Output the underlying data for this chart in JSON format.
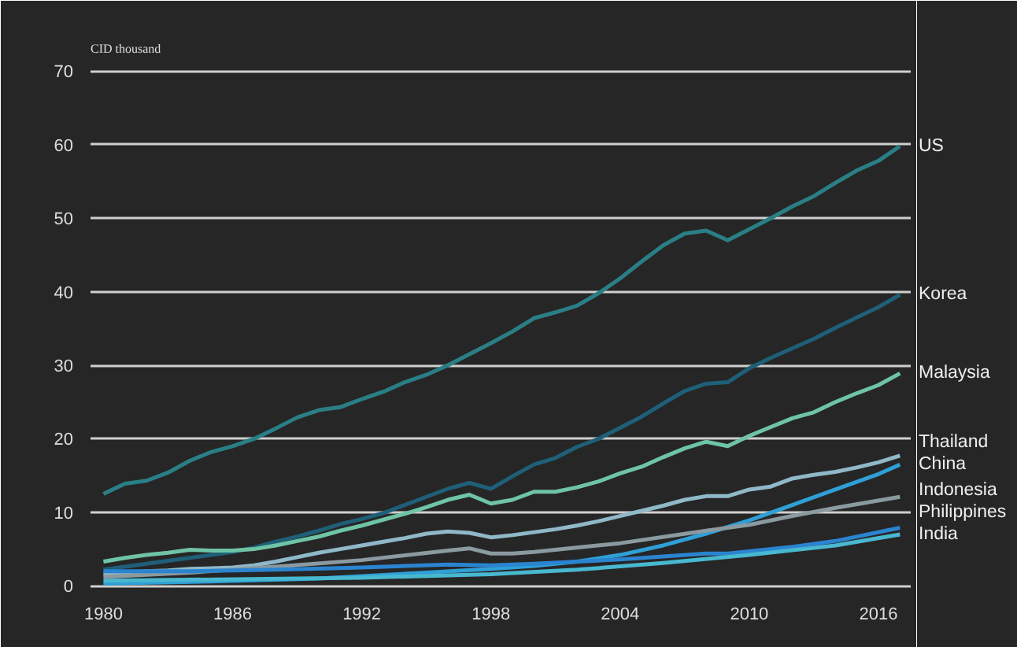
{
  "chart_data": {
    "type": "line",
    "ylabel": "CID thousand",
    "xlim": [
      1979.4,
      2017.5
    ],
    "ylim": [
      -0.5,
      71
    ],
    "xticks": [
      1980,
      1986,
      1992,
      1998,
      2004,
      2010,
      2016
    ],
    "yticks": [
      0,
      10,
      20,
      30,
      40,
      50,
      60,
      70
    ],
    "grid": "y",
    "legend": false,
    "x": [
      1980,
      1981,
      1982,
      1983,
      1984,
      1985,
      1986,
      1987,
      1988,
      1989,
      1990,
      1991,
      1992,
      1993,
      1994,
      1995,
      1996,
      1997,
      1998,
      1999,
      2000,
      2001,
      2002,
      2003,
      2004,
      2005,
      2006,
      2007,
      2008,
      2009,
      2010,
      2011,
      2012,
      2013,
      2014,
      2015,
      2016,
      2017
    ],
    "series": [
      {
        "name": "US",
        "color": "#2a7f86",
        "values": [
          12.5,
          13.9,
          14.3,
          15.4,
          17.0,
          18.2,
          19.0,
          20.0,
          21.4,
          22.9,
          23.9,
          24.3,
          25.4,
          26.4,
          27.7,
          28.7,
          30.0,
          31.5,
          33.0,
          34.6,
          36.4,
          37.2,
          38.1,
          39.8,
          41.8,
          44.1,
          46.3,
          47.9,
          48.3,
          47.0,
          48.5,
          50.0,
          51.6,
          53.0,
          54.8,
          56.5,
          57.8,
          59.8
        ]
      },
      {
        "name": "Korea",
        "color": "#1f5f78",
        "values": [
          2.2,
          2.6,
          3.0,
          3.4,
          3.8,
          4.2,
          4.6,
          5.2,
          6.0,
          6.7,
          7.5,
          8.4,
          9.1,
          9.9,
          11.0,
          12.1,
          13.2,
          14.0,
          13.2,
          14.9,
          16.5,
          17.4,
          18.9,
          20.0,
          21.5,
          23.0,
          24.8,
          26.5,
          27.5,
          27.7,
          29.6,
          31.0,
          32.3,
          33.6,
          35.1,
          36.5,
          37.9,
          39.6
        ]
      },
      {
        "name": "Malaysia",
        "color": "#6ec4a4",
        "values": [
          3.3,
          3.8,
          4.2,
          4.5,
          4.9,
          4.8,
          4.8,
          5.0,
          5.5,
          6.1,
          6.7,
          7.5,
          8.2,
          9.0,
          9.8,
          10.7,
          11.7,
          12.4,
          11.2,
          11.7,
          12.8,
          12.8,
          13.4,
          14.2,
          15.3,
          16.2,
          17.5,
          18.7,
          19.6,
          19.0,
          20.4,
          21.6,
          22.8,
          23.6,
          25.0,
          26.2,
          27.3,
          28.9
        ]
      },
      {
        "name": "Thailand",
        "color": "#8fb8c8",
        "values": [
          1.6,
          1.8,
          2.0,
          2.1,
          2.3,
          2.4,
          2.5,
          2.8,
          3.3,
          3.9,
          4.5,
          5.0,
          5.5,
          6.0,
          6.5,
          7.1,
          7.4,
          7.2,
          6.6,
          6.9,
          7.3,
          7.7,
          8.2,
          8.8,
          9.5,
          10.2,
          10.9,
          11.7,
          12.2,
          12.2,
          13.1,
          13.5,
          14.6,
          15.1,
          15.5,
          16.1,
          16.8,
          17.7
        ]
      },
      {
        "name": "China",
        "color": "#2f9fd6",
        "x": [
          1980,
          1985,
          1990,
          1995,
          1998,
          2000,
          2002,
          2004,
          2006,
          2008,
          2010,
          2012,
          2014,
          2016,
          2017
        ],
        "values": [
          0.3,
          0.6,
          1.0,
          1.8,
          2.3,
          2.7,
          3.3,
          4.2,
          5.5,
          7.1,
          8.9,
          11.0,
          13.1,
          15.2,
          16.5
        ]
      },
      {
        "name": "Indonesia",
        "color": "#8a9aa0",
        "x": [
          1980,
          1984,
          1988,
          1992,
          1996,
          1997,
          1998,
          1999,
          2000,
          2004,
          2008,
          2010,
          2012,
          2014,
          2017
        ],
        "values": [
          1.2,
          1.8,
          2.6,
          3.5,
          4.8,
          5.1,
          4.4,
          4.4,
          4.6,
          5.8,
          7.5,
          8.3,
          9.5,
          10.6,
          12.1
        ]
      },
      {
        "name": "Philippines",
        "color": "#2a84d0",
        "x": [
          1980,
          1984,
          1988,
          1992,
          1996,
          1998,
          2000,
          2004,
          2008,
          2009,
          2012,
          2014,
          2017
        ],
        "values": [
          2.0,
          2.0,
          2.2,
          2.5,
          2.9,
          2.8,
          3.0,
          3.6,
          4.4,
          4.4,
          5.3,
          6.1,
          7.9
        ]
      },
      {
        "name": "India",
        "color": "#48b8d0",
        "x": [
          1980,
          1986,
          1992,
          1998,
          2002,
          2006,
          2010,
          2014,
          2017
        ],
        "values": [
          0.7,
          0.9,
          1.1,
          1.6,
          2.2,
          3.1,
          4.2,
          5.5,
          7.0
        ]
      }
    ]
  }
}
